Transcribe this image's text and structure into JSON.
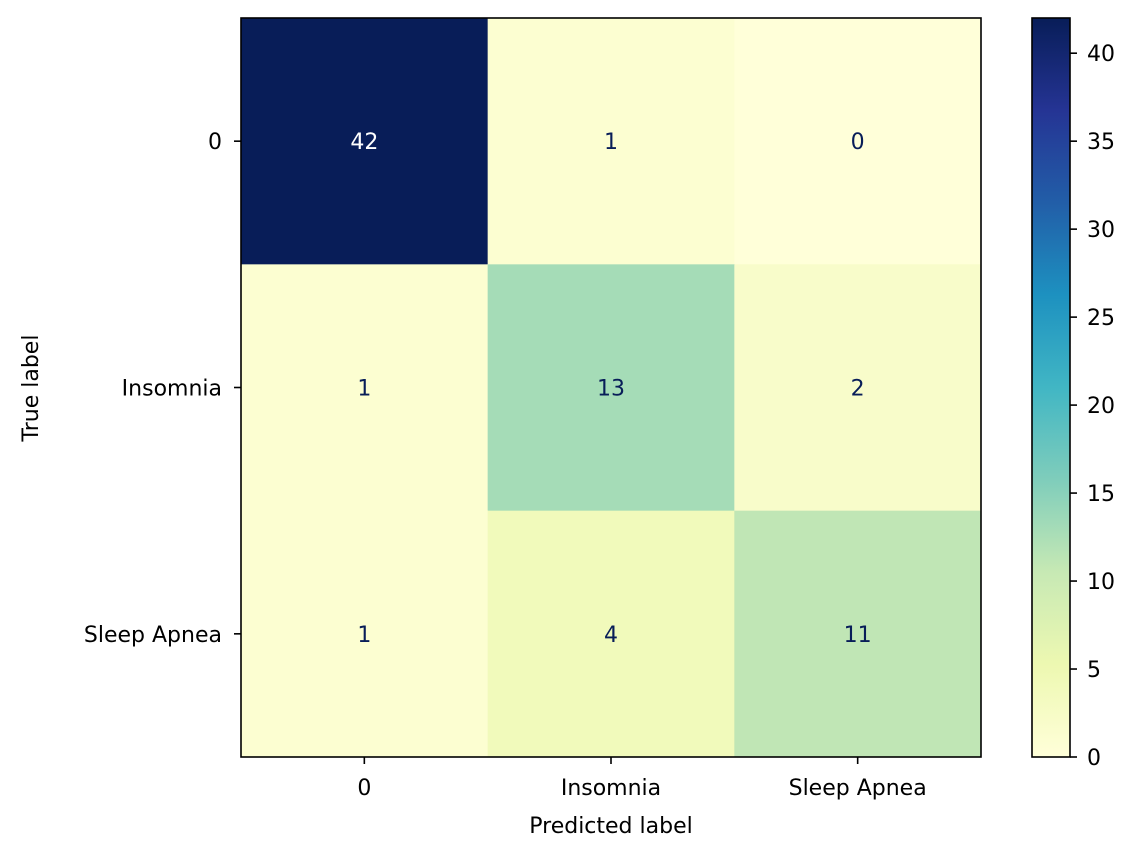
{
  "chart_data": {
    "type": "heatmap",
    "title": "",
    "xlabel": "Predicted label",
    "ylabel": "True label",
    "x_categories": [
      "0",
      "Insomnia",
      "Sleep Apnea"
    ],
    "y_categories": [
      "0",
      "Insomnia",
      "Sleep Apnea"
    ],
    "values": [
      [
        42,
        1,
        0
      ],
      [
        1,
        13,
        2
      ],
      [
        1,
        4,
        11
      ]
    ],
    "value_range": [
      0,
      42
    ],
    "colormap": "YlGnBu",
    "colorbar_ticks": [
      "0",
      "5",
      "10",
      "15",
      "20",
      "25",
      "30",
      "35",
      "40"
    ],
    "colors": {
      "text_dark_cell": "#ffffff",
      "text_light_cell": "#081d58"
    }
  }
}
